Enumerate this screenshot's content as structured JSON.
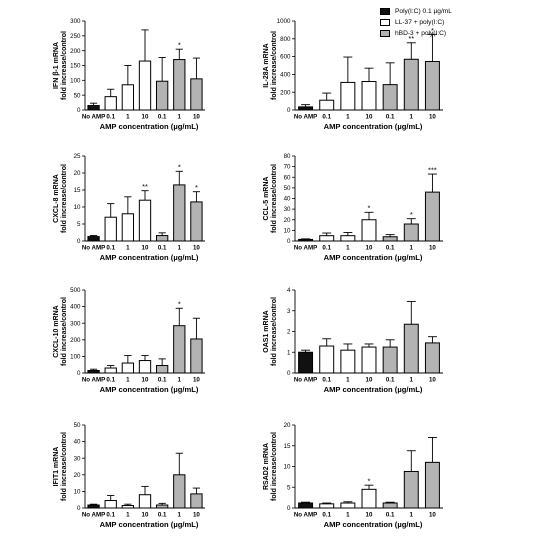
{
  "legend": [
    {
      "label": "Poly(I:C) 0.1 µg/mL",
      "color": "#111111"
    },
    {
      "label": "LL-37 + poly(I:C)",
      "color": "#ffffff"
    },
    {
      "label": "hBD-3 + poly(I:C)",
      "color": "#b3b3b3"
    }
  ],
  "chart_data": [
    {
      "type": "bar",
      "ylabel": "IFN β-1 mRNA",
      "ylabel2": "fold increase/control",
      "xlabel": "AMP concentration (µg/mL)",
      "categories": [
        "No AMP",
        "0.1",
        "1",
        "10",
        "0.1",
        "1",
        "10"
      ],
      "values": [
        15,
        45,
        85,
        165,
        97,
        170,
        105
      ],
      "errors": [
        8,
        25,
        65,
        105,
        80,
        35,
        70
      ],
      "sig": [
        "",
        "",
        "",
        "",
        "",
        "*",
        ""
      ],
      "ylim": [
        0,
        300
      ],
      "yticks": [
        0,
        50,
        100,
        150,
        200,
        250,
        300
      ]
    },
    {
      "type": "bar",
      "ylabel": "IL-28A mRNA",
      "ylabel2": "fold increase/control",
      "xlabel": "AMP concentration (µg/mL)",
      "categories": [
        "No AMP",
        "0.1",
        "1",
        "10",
        "0.1",
        "1",
        "10"
      ],
      "values": [
        35,
        110,
        310,
        320,
        285,
        570,
        545
      ],
      "errors": [
        25,
        80,
        285,
        150,
        245,
        185,
        305
      ],
      "sig": [
        "",
        "",
        "",
        "",
        "",
        "**",
        "*"
      ],
      "ylim": [
        0,
        1000
      ],
      "yticks": [
        0,
        200,
        400,
        600,
        800,
        1000
      ]
    },
    {
      "type": "bar",
      "ylabel": "CXCL-8 mRNA",
      "ylabel2": "fold increase/control",
      "xlabel": "AMP concentration (µg/mL)",
      "categories": [
        "No AMP",
        "0.1",
        "1",
        "10",
        "0.1",
        "1",
        "10"
      ],
      "values": [
        1.3,
        7.0,
        8.0,
        12.0,
        1.6,
        16.5,
        11.5
      ],
      "errors": [
        0.3,
        4.0,
        5.0,
        2.8,
        0.8,
        4.0,
        3.0
      ],
      "sig": [
        "",
        "",
        "",
        "**",
        "",
        "*",
        "*"
      ],
      "ylim": [
        0,
        25
      ],
      "yticks": [
        0,
        5,
        10,
        15,
        20,
        25
      ]
    },
    {
      "type": "bar",
      "ylabel": "CCL-5 mRNA",
      "ylabel2": "fold increase/control",
      "xlabel": "AMP concentration (µg/mL)",
      "categories": [
        "No AMP",
        "0.1",
        "1",
        "10",
        "0.1",
        "1",
        "10"
      ],
      "values": [
        1.5,
        5.0,
        5.0,
        20.0,
        4.0,
        16.0,
        46.0
      ],
      "errors": [
        0.5,
        2.5,
        3.0,
        7.0,
        2.0,
        5.0,
        17.0
      ],
      "sig": [
        "",
        "",
        "",
        "*",
        "",
        "*",
        "***"
      ],
      "ylim": [
        0,
        80
      ],
      "yticks": [
        0,
        10,
        20,
        30,
        40,
        50,
        60,
        70,
        80
      ]
    },
    {
      "type": "bar",
      "ylabel": "CXCL-10 mRNA",
      "ylabel2": "fold increase/control",
      "xlabel": "AMP concentration (µg/mL)",
      "categories": [
        "No AMP",
        "0.1",
        "1",
        "10",
        "0.1",
        "1",
        "10"
      ],
      "values": [
        15,
        30,
        60,
        75,
        45,
        285,
        205
      ],
      "errors": [
        8,
        15,
        45,
        30,
        40,
        105,
        125
      ],
      "sig": [
        "",
        "",
        "",
        "",
        "",
        "*",
        ""
      ],
      "ylim": [
        0,
        500
      ],
      "yticks": [
        0,
        100,
        200,
        300,
        400,
        500
      ]
    },
    {
      "type": "bar",
      "ylabel": "OAS1 mRNA",
      "ylabel2": "fold increase/control",
      "xlabel": "AMP concentration (µg/mL)",
      "categories": [
        "No AMP",
        "0.1",
        "1",
        "10",
        "0.1",
        "1",
        "10"
      ],
      "values": [
        1.0,
        1.3,
        1.1,
        1.25,
        1.25,
        2.35,
        1.45
      ],
      "errors": [
        0.1,
        0.35,
        0.3,
        0.15,
        0.35,
        1.1,
        0.3
      ],
      "sig": [
        "",
        "",
        "",
        "",
        "",
        "",
        ""
      ],
      "ylim": [
        0,
        4
      ],
      "yticks": [
        0,
        1,
        2,
        3,
        4
      ]
    },
    {
      "type": "bar",
      "ylabel": "IFIT1 mRNA",
      "ylabel2": "fold increase/control",
      "xlabel": "AMP concentration (µg/mL)",
      "categories": [
        "No AMP",
        "0.1",
        "1",
        "10",
        "0.1",
        "1",
        "10"
      ],
      "values": [
        1.8,
        4.5,
        1.5,
        8.0,
        1.8,
        20.0,
        8.5
      ],
      "errors": [
        0.5,
        3.0,
        0.8,
        5.0,
        1.0,
        13.0,
        3.5
      ],
      "sig": [
        "",
        "",
        "",
        "",
        "",
        "",
        ""
      ],
      "ylim": [
        0,
        50
      ],
      "yticks": [
        0,
        10,
        20,
        30,
        40,
        50
      ]
    },
    {
      "type": "bar",
      "ylabel": "RSAD2 mRNA",
      "ylabel2": "fold increase/control",
      "xlabel": "AMP concentration (µg/mL)",
      "categories": [
        "No AMP",
        "0.1",
        "1",
        "10",
        "0.1",
        "1",
        "10"
      ],
      "values": [
        1.2,
        1.0,
        1.2,
        4.5,
        1.2,
        8.8,
        11.0
      ],
      "errors": [
        0.2,
        0.2,
        0.3,
        1.0,
        0.2,
        5.0,
        6.0
      ],
      "sig": [
        "",
        "",
        "",
        "*",
        "",
        "",
        ""
      ],
      "ylim": [
        0,
        20
      ],
      "yticks": [
        0,
        5,
        10,
        15,
        20
      ]
    }
  ]
}
